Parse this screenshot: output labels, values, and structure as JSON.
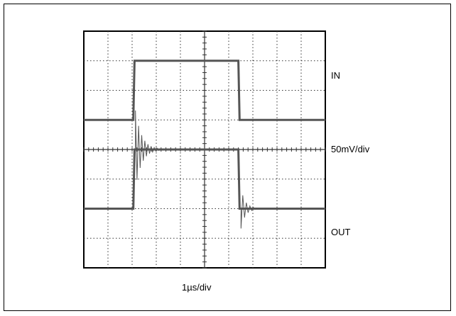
{
  "chart_data": {
    "type": "line",
    "title": "",
    "xlabel": "1µs/div",
    "ylabel": "",
    "x_divisions": 10,
    "y_divisions": 8,
    "grid": true,
    "xlim": [
      0,
      10
    ],
    "ylim": [
      0,
      8
    ],
    "series": [
      {
        "name": "IN",
        "x": [
          0,
          2.05,
          2.1,
          6.4,
          6.45,
          10
        ],
        "y": [
          5,
          5,
          7,
          7,
          5,
          5
        ]
      },
      {
        "name": "OUT",
        "x": [
          0,
          2.05,
          2.1,
          6.4,
          6.45,
          10
        ],
        "y": [
          2,
          2,
          4,
          4,
          2,
          2
        ]
      }
    ],
    "annotations": [
      {
        "text": "IN",
        "y": 6.5
      },
      {
        "text": "50mV/div",
        "y": 4
      },
      {
        "text": "OUT",
        "y": 1.2
      }
    ]
  }
}
